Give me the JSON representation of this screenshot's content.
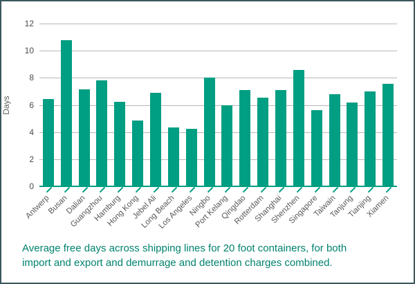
{
  "chart_data": {
    "type": "bar",
    "title": "",
    "xlabel": "",
    "ylabel": "Days",
    "ylim": [
      0,
      12
    ],
    "yticks": [
      0,
      2,
      4,
      6,
      8,
      10,
      12
    ],
    "grid": true,
    "legend_position": "none",
    "categories": [
      "Antwerp",
      "Busan",
      "Dalian",
      "Guangzhou",
      "Hamburg",
      "Hong Kong",
      "Jebel Ali",
      "Long Beach",
      "Los Angeles",
      "Ningbo",
      "Port Kelang",
      "Qingdao",
      "Rotterdam",
      "Shanghai",
      "Shenzhen",
      "Singapore",
      "Taiwain",
      "Tanjung",
      "Tianjing",
      "Xiamen"
    ],
    "values": [
      6.45,
      10.75,
      7.15,
      7.8,
      6.25,
      4.85,
      6.9,
      4.35,
      4.25,
      8.0,
      6.0,
      7.1,
      6.55,
      7.1,
      8.6,
      5.6,
      6.8,
      6.2,
      7.0,
      7.55
    ]
  },
  "caption": {
    "lines": [
      "Average free days across shipping lines for 20 foot containers, for both",
      "import and export and demurrage and detention charges combined."
    ]
  },
  "colors": {
    "bar": "#009E82",
    "grid": "#B7B7B7",
    "axis_line": "#009E82",
    "tick_text": "#4B4B4B",
    "label_text": "#58585A",
    "caption_text": "#00826D",
    "frame_border": "#3B575D",
    "background": "#FFFFFF"
  }
}
